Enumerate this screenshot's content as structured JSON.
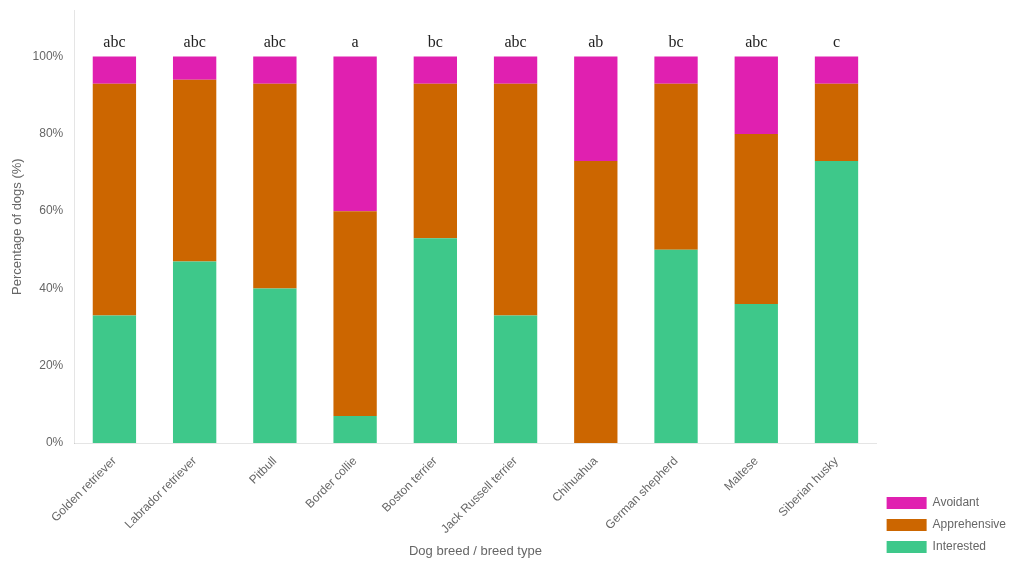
{
  "chart_data": {
    "type": "bar",
    "stacked": true,
    "x_label": "Dog breed / breed type",
    "y_label": "Percentage of dogs (%)",
    "categories": [
      "Golden retriever",
      "Labrador retriever",
      "Pitbull",
      "Border collie",
      "Boston terrier",
      "Jack Russell terrier",
      "Chihuahua",
      "German shepherd",
      "Maltese",
      "Siberian husky"
    ],
    "series": [
      {
        "name": "Interested",
        "color": "#3ec88a",
        "values": [
          33,
          47,
          40,
          7,
          53,
          33,
          0,
          50,
          36,
          73
        ]
      },
      {
        "name": "Apprehensive",
        "color": "#cc6600",
        "values": [
          60,
          47,
          53,
          53,
          40,
          60,
          73,
          43,
          44,
          20
        ]
      },
      {
        "name": "Avoidant",
        "color": "#e020b0",
        "values": [
          7,
          6,
          7,
          40,
          7,
          7,
          27,
          7,
          20,
          7
        ]
      }
    ],
    "ylim": [
      0,
      112
    ],
    "yticks": [
      {
        "value": 0,
        "label": "0%"
      },
      {
        "value": 20,
        "label": "20%"
      },
      {
        "value": 40,
        "label": "40%"
      },
      {
        "value": 60,
        "label": "60%"
      },
      {
        "value": 80,
        "label": "80%"
      },
      {
        "value": 100,
        "label": "100%"
      }
    ],
    "annotations": [
      {
        "x": "Golden retriever",
        "y": 101.5,
        "text": "abc"
      },
      {
        "x": "Labrador retriever",
        "y": 101.5,
        "text": "abc"
      },
      {
        "x": "Pitbull",
        "y": 101.5,
        "text": "abc"
      },
      {
        "x": "Border collie",
        "y": 101.5,
        "text": "a"
      },
      {
        "x": "Boston terrier",
        "y": 101.5,
        "text": "bc"
      },
      {
        "x": "Jack Russell terrier",
        "y": 101.5,
        "text": "abc"
      },
      {
        "x": "Chihuahua",
        "y": 101.5,
        "text": "ab"
      },
      {
        "x": "German shepherd",
        "y": 101.5,
        "text": "bc"
      },
      {
        "x": "Maltese",
        "y": 101.5,
        "text": "abc"
      },
      {
        "x": "Siberian husky",
        "y": 101.5,
        "text": "c"
      }
    ],
    "grid": false,
    "legend": "lower right"
  }
}
